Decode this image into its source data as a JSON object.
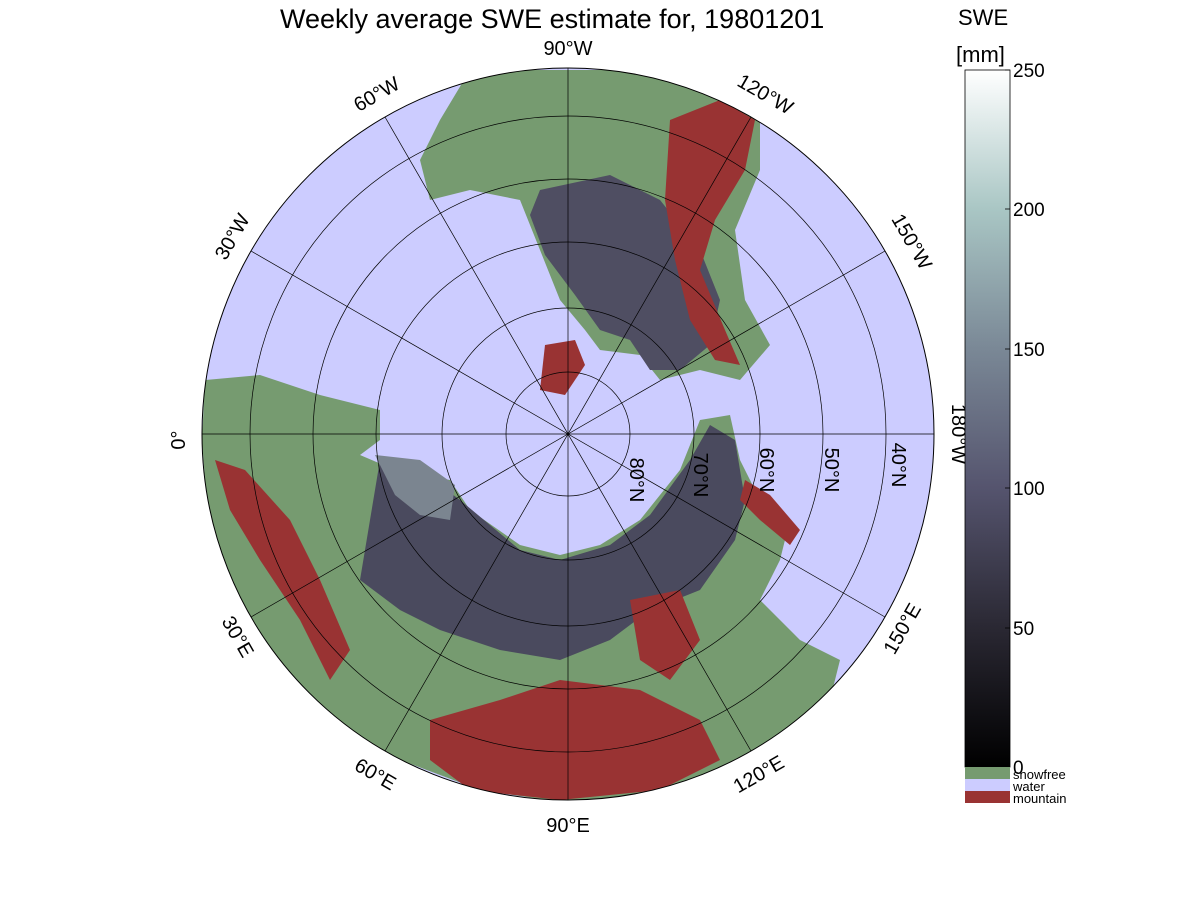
{
  "title": "Weekly average SWE estimate for, 19801201",
  "map": {
    "projection": "polar stereographic (north pole)",
    "longitude_labels": [
      {
        "text": "90°W",
        "lon": -90
      },
      {
        "text": "60°W",
        "lon": -60
      },
      {
        "text": "30°W",
        "lon": -30
      },
      {
        "text": "0°",
        "lon": 0
      },
      {
        "text": "30°E",
        "lon": 30
      },
      {
        "text": "60°E",
        "lon": 60
      },
      {
        "text": "90°E",
        "lon": 90
      },
      {
        "text": "120°E",
        "lon": 120
      },
      {
        "text": "150°E",
        "lon": 150
      },
      {
        "text": "180°W",
        "lon": 180
      },
      {
        "text": "150°W",
        "lon": -150
      },
      {
        "text": "120°W",
        "lon": -120
      }
    ],
    "latitude_labels": [
      {
        "text": "80°N",
        "lat": 80
      },
      {
        "text": "70°N",
        "lat": 70
      },
      {
        "text": "60°N",
        "lat": 60
      },
      {
        "text": "50°N",
        "lat": 50
      },
      {
        "text": "40°N",
        "lat": 40
      }
    ]
  },
  "colorbar": {
    "title_line1": "SWE",
    "title_line2": "[mm]",
    "ticks": [
      "0",
      "50",
      "100",
      "150",
      "200",
      "250"
    ],
    "range": [
      0,
      250
    ],
    "categories": [
      {
        "label": "snowfree",
        "color": "#769b70"
      },
      {
        "label": "water",
        "color": "#ccccff"
      },
      {
        "label": "mountain",
        "color": "#993333"
      }
    ]
  }
}
